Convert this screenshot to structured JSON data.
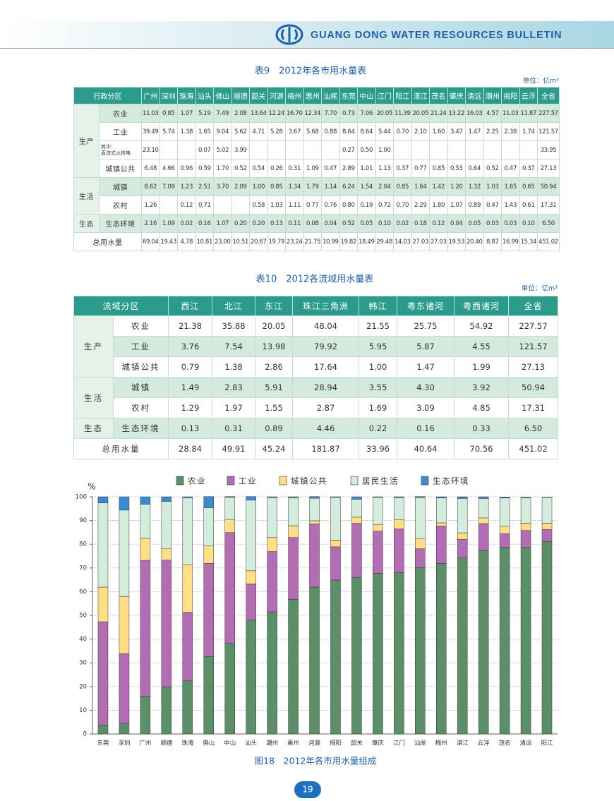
{
  "header": {
    "title": "GUANG DONG WATER RESOURCES BULLETIN"
  },
  "page_number": "19",
  "table9": {
    "title": "表9　2012年各市用水量表",
    "unit": "单位：亿m³",
    "corner": "行政分区",
    "columns": [
      "广州",
      "深圳",
      "珠海",
      "汕头",
      "佛山",
      "顺德",
      "韶关",
      "河源",
      "梅州",
      "惠州",
      "汕尾",
      "东莞",
      "中山",
      "江门",
      "阳江",
      "湛江",
      "茂名",
      "肇庆",
      "清远",
      "潮州",
      "揭阳",
      "云浮",
      "全省"
    ],
    "groups": [
      {
        "label": "生产",
        "rows": [
          {
            "name": [
              "农业"
            ],
            "values": [
              "11.03",
              "0.85",
              "1.07",
              "5.19",
              "7.49",
              "2.08",
              "13.64",
              "12.24",
              "16.70",
              "12.34",
              "7.70",
              "0.73",
              "7.06",
              "20.05",
              "11.39",
              "20.05",
              "21.24",
              "13.22",
              "16.03",
              "4.57",
              "11.03",
              "11.87",
              "227.57"
            ]
          },
          {
            "name": [
              "工业"
            ],
            "values": [
              "39.49",
              "5.74",
              "1.38",
              "1.65",
              "9.04",
              "5.62",
              "4.71",
              "5.28",
              "3.67",
              "5.68",
              "0.88",
              "8.64",
              "8.64",
              "5.44",
              "0.70",
              "2.10",
              "1.60",
              "3.47",
              "1.47",
              "2.25",
              "2.38",
              "1.74",
              "121.57"
            ]
          },
          {
            "name": [
              "其中：",
              "直流式火核电"
            ],
            "values": [
              "23.10",
              null,
              null,
              "0.07",
              "5.02",
              "3.99",
              null,
              null,
              null,
              null,
              null,
              "0.27",
              "0.50",
              "1.00",
              null,
              null,
              null,
              null,
              null,
              null,
              null,
              null,
              "33.95"
            ]
          },
          {
            "name": [
              "城镇公共"
            ],
            "values": [
              "6.48",
              "4.66",
              "0.96",
              "0.59",
              "1.70",
              "0.52",
              "0.54",
              "0.26",
              "0.31",
              "1.09",
              "0.47",
              "2.89",
              "1.01",
              "1.13",
              "0.37",
              "0.77",
              "0.85",
              "0.53",
              "0.64",
              "0.52",
              "0.47",
              "0.37",
              "27.13"
            ]
          }
        ]
      },
      {
        "label": "生活",
        "rows": [
          {
            "name": [
              "城镇"
            ],
            "values": [
              "8.62",
              "7.09",
              "1.23",
              "2.51",
              "3.70",
              "2.09",
              "1.00",
              "0.85",
              "1.34",
              "1.79",
              "1.14",
              "6.24",
              "1.54",
              "2.04",
              "0.85",
              "1.64",
              "1.42",
              "1.20",
              "1.32",
              "1.03",
              "1.65",
              "0.65",
              "50.94"
            ]
          },
          {
            "name": [
              "农村"
            ],
            "values": [
              "1.26",
              null,
              "0.12",
              "0.71",
              null,
              null,
              "0.58",
              "1.03",
              "1.11",
              "0.77",
              "0.76",
              "0.80",
              "0.19",
              "0.72",
              "0.70",
              "2.29",
              "1.80",
              "1.07",
              "0.89",
              "0.47",
              "1.43",
              "0.61",
              "17.31"
            ]
          }
        ]
      },
      {
        "label": "生态",
        "rows": [
          {
            "name": [
              "生态环境"
            ],
            "values": [
              "2.16",
              "1.09",
              "0.02",
              "0.16",
              "1.07",
              "0.20",
              "0.20",
              "0.13",
              "0.11",
              "0.08",
              "0.04",
              "0.52",
              "0.05",
              "0.10",
              "0.02",
              "0.18",
              "0.12",
              "0.04",
              "0.05",
              "0.03",
              "0.03",
              "0.10",
              "6.50"
            ]
          }
        ]
      }
    ],
    "total": {
      "label": "总用水量",
      "values": [
        "69.04",
        "19.43",
        "4.78",
        "10.81",
        "23.00",
        "10.51",
        "20.67",
        "19.79",
        "23.24",
        "21.75",
        "10.99",
        "19.82",
        "18.49",
        "29.48",
        "14.03",
        "27.03",
        "27.03",
        "19.53",
        "20.40",
        "8.87",
        "16.99",
        "15.34",
        "451.02"
      ]
    }
  },
  "table10": {
    "title": "表10　2012各流域用水量表",
    "unit": "单位：亿m³",
    "corner": "流域分区",
    "columns": [
      "西江",
      "北江",
      "东江",
      "珠江三角洲",
      "韩江",
      "粤东诸河",
      "粤西诸河",
      "全省"
    ],
    "groups": [
      {
        "label": "生产",
        "rows": [
          {
            "name": [
              "农业"
            ],
            "values": [
              "21.38",
              "35.88",
              "20.05",
              "48.04",
              "21.55",
              "25.75",
              "54.92",
              "227.57"
            ]
          },
          {
            "name": [
              "工业"
            ],
            "values": [
              "3.76",
              "7.54",
              "13.98",
              "79.92",
              "5.95",
              "5.87",
              "4.55",
              "121.57"
            ]
          },
          {
            "name": [
              "城镇公共"
            ],
            "values": [
              "0.79",
              "1.38",
              "2.86",
              "17.64",
              "1.00",
              "1.47",
              "1.99",
              "27.13"
            ]
          }
        ]
      },
      {
        "label": "生活",
        "rows": [
          {
            "name": [
              "城镇"
            ],
            "values": [
              "1.49",
              "2.83",
              "5.91",
              "28.94",
              "3.55",
              "4.30",
              "3.92",
              "50.94"
            ]
          },
          {
            "name": [
              "农村"
            ],
            "values": [
              "1.29",
              "1.97",
              "1.55",
              "2.87",
              "1.69",
              "3.09",
              "4.85",
              "17.31"
            ]
          }
        ]
      },
      {
        "label": "生态",
        "rows": [
          {
            "name": [
              "生态环境"
            ],
            "values": [
              "0.13",
              "0.31",
              "0.89",
              "4.46",
              "0.22",
              "0.16",
              "0.33",
              "6.50"
            ]
          }
        ]
      }
    ],
    "total": {
      "label": "总用水量",
      "values": [
        "28.84",
        "49.91",
        "45.24",
        "181.87",
        "33.96",
        "40.64",
        "70.56",
        "451.02"
      ]
    }
  },
  "chart_data": {
    "type": "stacked_bar",
    "title": "图18　2012年各市用水量组成",
    "y_label": "%",
    "categories": [
      "东莞",
      "深圳",
      "广州",
      "顺德",
      "珠海",
      "佛山",
      "中山",
      "汕头",
      "潮州",
      "惠州",
      "河源",
      "揭阳",
      "韶关",
      "肇庆",
      "江门",
      "汕尾",
      "梅州",
      "湛江",
      "云浮",
      "茂名",
      "清远",
      "阳江"
    ],
    "series": [
      {
        "name": "农业",
        "color": "#5b8f68",
        "values": [
          3.7,
          4.4,
          16.0,
          19.8,
          22.4,
          32.6,
          38.2,
          48.0,
          51.5,
          56.7,
          61.9,
          64.9,
          66.0,
          67.7,
          68.0,
          70.1,
          71.9,
          74.2,
          77.4,
          78.6,
          78.6,
          81.2
        ]
      },
      {
        "name": "工业",
        "color": "#b26db4",
        "values": [
          43.6,
          29.5,
          57.2,
          53.5,
          28.9,
          39.3,
          46.7,
          15.3,
          25.4,
          26.1,
          26.7,
          14.0,
          22.8,
          17.8,
          18.5,
          8.0,
          15.8,
          7.8,
          11.3,
          5.9,
          7.2,
          5.0
        ]
      },
      {
        "name": "城镇公共",
        "color": "#ffdf85",
        "values": [
          14.6,
          24.0,
          9.4,
          4.9,
          20.1,
          7.4,
          5.5,
          5.5,
          5.9,
          5.0,
          1.3,
          2.8,
          2.6,
          2.7,
          3.8,
          4.3,
          1.3,
          2.8,
          2.4,
          3.1,
          3.1,
          2.6
        ]
      },
      {
        "name": "居民生活",
        "color": "#d4ecdb",
        "values": [
          35.5,
          36.5,
          14.3,
          19.9,
          28.2,
          16.1,
          9.4,
          29.8,
          16.9,
          11.8,
          9.5,
          18.1,
          7.6,
          11.6,
          9.4,
          17.3,
          10.5,
          14.5,
          8.2,
          11.9,
          10.8,
          11.0
        ]
      },
      {
        "name": "生态环境",
        "color": "#3b8bd1",
        "values": [
          2.6,
          5.6,
          3.1,
          1.9,
          0.4,
          4.7,
          0.3,
          1.5,
          0.3,
          0.4,
          0.7,
          0.2,
          1.0,
          0.2,
          0.3,
          0.4,
          0.5,
          0.7,
          0.7,
          0.4,
          0.2,
          0.1
        ]
      }
    ],
    "ylim": [
      0,
      100
    ],
    "yticks": [
      0,
      10,
      20,
      30,
      40,
      50,
      60,
      70,
      80,
      90,
      100
    ],
    "grid": true
  }
}
